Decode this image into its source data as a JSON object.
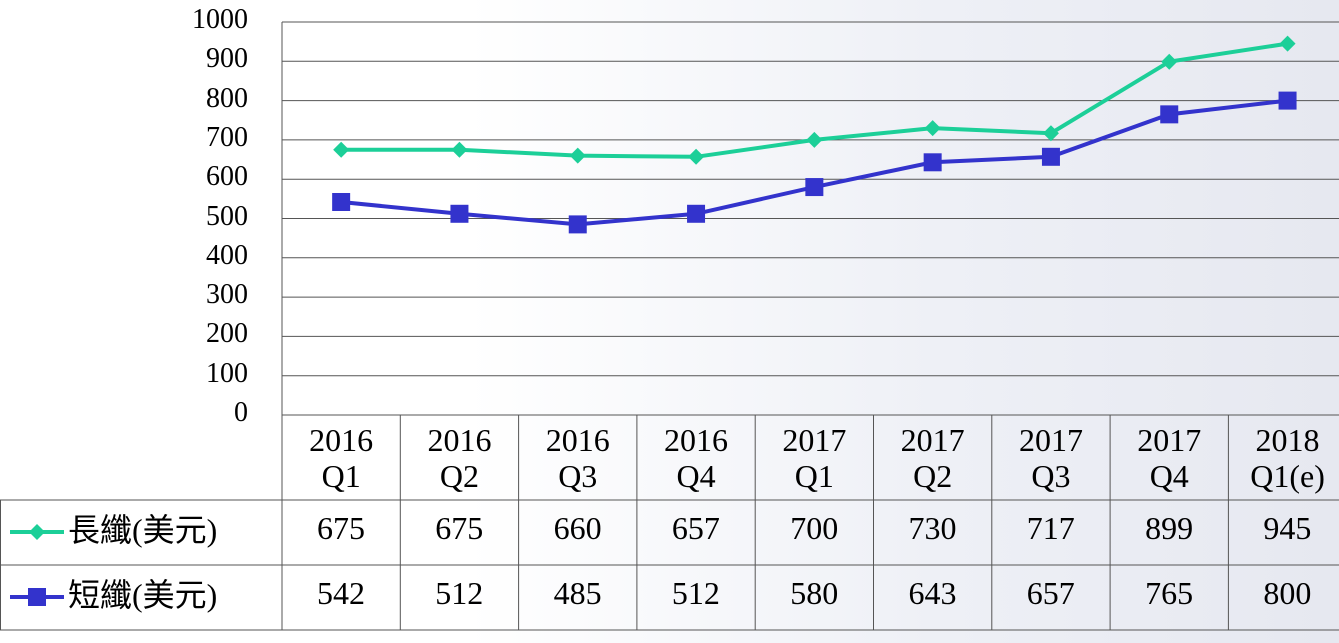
{
  "chart_data": {
    "type": "line",
    "categories": [
      "2016 Q1",
      "2016 Q2",
      "2016 Q3",
      "2016 Q4",
      "2017 Q1",
      "2017 Q2",
      "2017 Q3",
      "2017 Q4",
      "2018 Q1(e)"
    ],
    "series": [
      {
        "name": "長纖(美元)",
        "color": "#1ccf98",
        "marker": "diamond",
        "values": [
          675,
          675,
          660,
          657,
          700,
          730,
          717,
          899,
          945
        ]
      },
      {
        "name": "短纖(美元)",
        "color": "#3333cc",
        "marker": "square",
        "values": [
          542,
          512,
          485,
          512,
          580,
          643,
          657,
          765,
          800
        ]
      }
    ],
    "ylim": [
      0,
      1000
    ],
    "yticks": [
      0,
      100,
      200,
      300,
      400,
      500,
      600,
      700,
      800,
      900,
      1000
    ],
    "grid": true
  }
}
